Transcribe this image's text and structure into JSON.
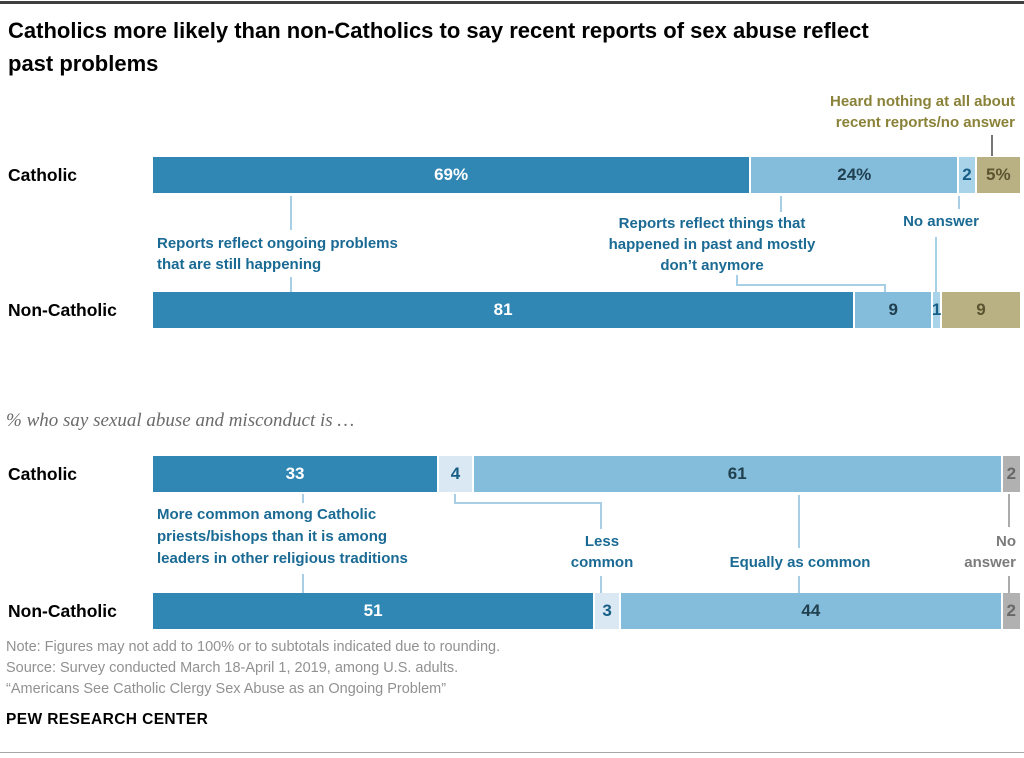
{
  "header": {
    "title_lines": [
      "Catholics more likely than non-Catholics to say recent reports of sex abuse reflect",
      "past problems"
    ]
  },
  "chart1": {
    "legend_note_lines": [
      "Heard nothing at all about",
      "recent reports/no answer"
    ],
    "rows": [
      {
        "label": "Catholic",
        "segments": [
          {
            "value": "69%",
            "pct": 69
          },
          {
            "value": "24%",
            "pct": 24
          },
          {
            "value": "2",
            "pct": 2
          },
          {
            "value": "5%",
            "pct": 5
          }
        ]
      },
      {
        "label": "Non-Catholic",
        "segments": [
          {
            "value": "81",
            "pct": 81
          },
          {
            "value": "9",
            "pct": 9
          },
          {
            "value": "1",
            "pct": 1
          },
          {
            "value": "9",
            "pct": 9
          }
        ]
      }
    ],
    "callouts": {
      "ongoing_lines": [
        "Reports reflect ongoing problems",
        "that are still happening"
      ],
      "past_lines": [
        "Reports reflect things that",
        "happened in past and mostly",
        "don’t anymore"
      ],
      "no_answer": "No answer"
    }
  },
  "chart2": {
    "subtitle": "% who say sexual abuse and misconduct is …",
    "rows": [
      {
        "label": "Catholic",
        "segments": [
          {
            "value": "33",
            "pct": 33
          },
          {
            "value": "4",
            "pct": 4
          },
          {
            "value": "61",
            "pct": 61
          },
          {
            "value": "2",
            "pct": 2
          }
        ]
      },
      {
        "label": "Non-Catholic",
        "segments": [
          {
            "value": "51",
            "pct": 51
          },
          {
            "value": "3",
            "pct": 3
          },
          {
            "value": "44",
            "pct": 44
          },
          {
            "value": "2",
            "pct": 2
          }
        ]
      }
    ],
    "callouts": {
      "more_common_lines": [
        "More common among Catholic",
        "priests/bishops than it is among",
        "leaders in other religious traditions"
      ],
      "less_common_lines": [
        "Less",
        "common"
      ],
      "equally_common": "Equally as common",
      "no_answer_lines": [
        "No",
        "answer"
      ]
    }
  },
  "footer": {
    "note": "Note: Figures may not add to 100% or to subtotals indicated due to rounding.",
    "source": "Source: Survey conducted March 18-April 1, 2019, among U.S. adults.",
    "report_title": "“Americans See Catholic Clergy Sex Abuse as an Ongoing Problem”",
    "brand": "PEW RESEARCH CENTER"
  },
  "palette": {
    "dark_blue": "#3087B4",
    "medium_blue": "#84BDDB",
    "pale_blue": "#A9D3E8",
    "palest_blue": "#D9E8F3",
    "olive": "#B9B083",
    "gray_segment": "#B1B1B1",
    "callout_blue_text": "#1A6A94",
    "olive_label_text": "#8A8239",
    "gray_label_text": "#7B7B7B",
    "connector_blue": "#A7CFE5"
  },
  "chart_data": [
    {
      "type": "bar",
      "subtype": "stacked-horizontal",
      "title": "Catholics more likely than non-Catholics to say recent reports of sex abuse reflect past problems",
      "categories": [
        "Catholic",
        "Non-Catholic"
      ],
      "series": [
        {
          "name": "Reports reflect ongoing problems that are still happening",
          "values": [
            69,
            81
          ],
          "color": "#3087B4"
        },
        {
          "name": "Reports reflect things that happened in past and mostly don’t anymore",
          "values": [
            24,
            9
          ],
          "color": "#84BDDB"
        },
        {
          "name": "No answer",
          "values": [
            2,
            1
          ],
          "color": "#A9D3E8"
        },
        {
          "name": "Heard nothing at all about recent reports/no answer",
          "values": [
            5,
            9
          ],
          "color": "#B9B083"
        }
      ],
      "unit": "%",
      "xlim": [
        0,
        100
      ],
      "grid": false,
      "legend_position": "inline-callouts"
    },
    {
      "type": "bar",
      "subtype": "stacked-horizontal",
      "title": "% who say sexual abuse and misconduct is …",
      "categories": [
        "Catholic",
        "Non-Catholic"
      ],
      "series": [
        {
          "name": "More common among Catholic priests/bishops than it is among leaders in other religious traditions",
          "values": [
            33,
            51
          ],
          "color": "#3087B4"
        },
        {
          "name": "Less common",
          "values": [
            4,
            3
          ],
          "color": "#D9E8F3"
        },
        {
          "name": "Equally as common",
          "values": [
            61,
            44
          ],
          "color": "#84BDDB"
        },
        {
          "name": "No answer",
          "values": [
            2,
            2
          ],
          "color": "#B1B1B1"
        }
      ],
      "unit": "%",
      "xlim": [
        0,
        100
      ],
      "grid": false,
      "legend_position": "inline-callouts"
    }
  ]
}
